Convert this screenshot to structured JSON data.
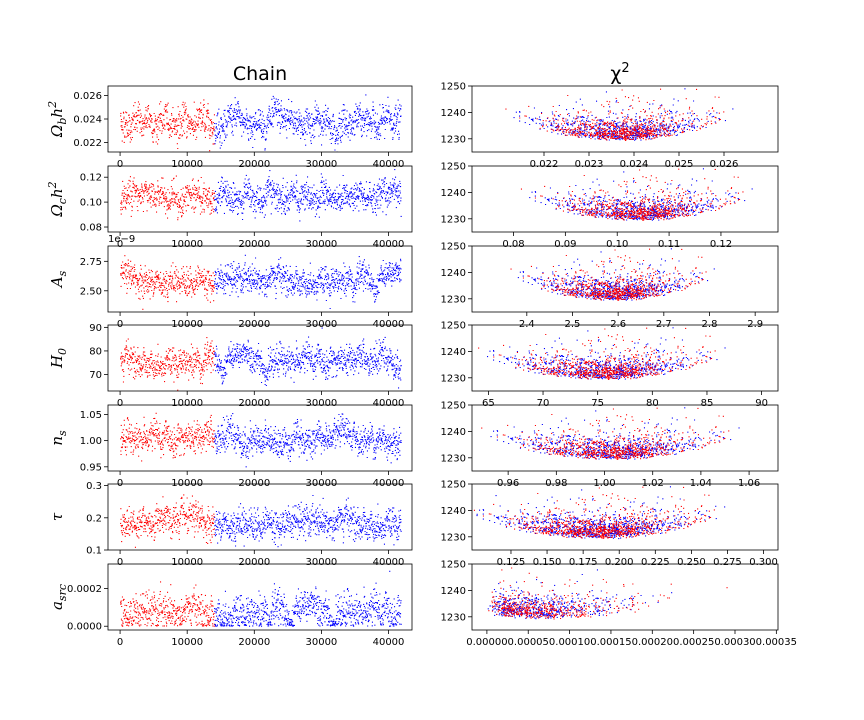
{
  "figure": {
    "left_title": "Chain",
    "right_title": "χ",
    "right_title_sup": "2"
  },
  "colors": {
    "burnin": "#ff0000",
    "chain": "#0000ff"
  },
  "chart_data": [
    {
      "type": "scatter",
      "panel": "trace",
      "param": "omega_b_h2",
      "label": {
        "base": "Ω",
        "sub": "b",
        "tail": "h",
        "sup": "2"
      },
      "x_range": [
        0,
        41800
      ],
      "burnin_end": 14000,
      "xlim": [
        -1800,
        43500
      ],
      "center": 0.0237,
      "spread": 0.00085,
      "ylim": [
        0.0212,
        0.0268
      ],
      "xticks": [
        0,
        10000,
        20000,
        30000,
        40000
      ],
      "yticks": [
        0.022,
        0.024,
        0.026
      ],
      "ytick_labels": [
        "0.022",
        "0.024",
        "0.026"
      ],
      "series": [
        {
          "name": "",
          "color": "#ff0000"
        },
        {
          "name": "",
          "color": "#0000ff"
        }
      ]
    },
    {
      "type": "scatter",
      "panel": "chi2",
      "param": "omega_b_h2",
      "x_center": 0.0237,
      "x_spread": 0.00085,
      "xlim": [
        0.0204,
        0.0272
      ],
      "ylim": [
        1225,
        1250
      ],
      "chi_min": 1229,
      "xticks": [
        0.022,
        0.023,
        0.024,
        0.025,
        0.026
      ],
      "xtick_labels": [
        "0.022",
        "0.023",
        "0.024",
        "0.025",
        "0.026"
      ],
      "yticks": [
        1230,
        1240,
        1250
      ],
      "ytick_labels": [
        "1230",
        "1240",
        "1250"
      ]
    },
    {
      "type": "scatter",
      "panel": "trace",
      "param": "omega_c_h2",
      "label": {
        "base": "Ω",
        "sub": "c",
        "tail": "h",
        "sup": "2"
      },
      "x_range": [
        0,
        41800
      ],
      "burnin_end": 14000,
      "xlim": [
        -1800,
        43500
      ],
      "center": 0.104,
      "spread": 0.0075,
      "ylim": [
        0.076,
        0.129
      ],
      "xticks": [
        0,
        10000,
        20000,
        30000,
        40000
      ],
      "yticks": [
        0.08,
        0.1,
        0.12
      ],
      "ytick_labels": [
        "0.08",
        "0.10",
        "0.12"
      ]
    },
    {
      "type": "scatter",
      "panel": "chi2",
      "param": "omega_c_h2",
      "x_center": 0.104,
      "x_spread": 0.0075,
      "xlim": [
        0.072,
        0.131
      ],
      "ylim": [
        1225,
        1250
      ],
      "chi_min": 1229,
      "xticks": [
        0.08,
        0.09,
        0.1,
        0.11,
        0.12
      ],
      "xtick_labels": [
        "0.08",
        "0.09",
        "0.10",
        "0.11",
        "0.12"
      ],
      "yticks": [
        1230,
        1240,
        1250
      ],
      "ytick_labels": [
        "1230",
        "1240",
        "1250"
      ]
    },
    {
      "type": "scatter",
      "panel": "trace",
      "param": "A_s",
      "label": {
        "base": "A",
        "sub": "s",
        "tail": "",
        "sup": ""
      },
      "offset_text": "1e−9",
      "x_range": [
        0,
        41800
      ],
      "burnin_end": 14000,
      "xlim": [
        -1800,
        43500
      ],
      "center": 2.59,
      "spread": 0.075,
      "ylim": [
        2.32,
        2.88
      ],
      "xticks": [
        0,
        10000,
        20000,
        30000,
        40000
      ],
      "yticks": [
        2.5,
        2.75
      ],
      "ytick_labels": [
        "2.50",
        "2.75"
      ]
    },
    {
      "type": "scatter",
      "panel": "chi2",
      "param": "A_s",
      "x_center": 2.59,
      "x_spread": 0.075,
      "xlim": [
        2.28,
        2.95
      ],
      "ylim": [
        1225,
        1250
      ],
      "chi_min": 1229,
      "xticks": [
        2.4,
        2.5,
        2.6,
        2.7,
        2.8,
        2.9
      ],
      "xtick_labels": [
        "2.4",
        "2.5",
        "2.6",
        "2.7",
        "2.8",
        "2.9"
      ],
      "yticks": [
        1230,
        1240,
        1250
      ],
      "ytick_labels": [
        "1230",
        "1240",
        "1250"
      ]
    },
    {
      "type": "scatter",
      "panel": "trace",
      "param": "H_0",
      "label": {
        "base": "H",
        "sub": "0",
        "tail": "",
        "sup": ""
      },
      "x_range": [
        0,
        41800
      ],
      "burnin_end": 14000,
      "xlim": [
        -1800,
        43500
      ],
      "center": 75.5,
      "spread": 3.8,
      "ylim": [
        63,
        91
      ],
      "xticks": [
        0,
        10000,
        20000,
        30000,
        40000
      ],
      "yticks": [
        70,
        80,
        90
      ],
      "ytick_labels": [
        "70",
        "80",
        "90"
      ]
    },
    {
      "type": "scatter",
      "panel": "chi2",
      "param": "H_0",
      "x_center": 75.5,
      "x_spread": 3.8,
      "xlim": [
        63.5,
        91.5
      ],
      "ylim": [
        1225,
        1250
      ],
      "chi_min": 1229,
      "xticks": [
        65,
        70,
        75,
        80,
        85,
        90
      ],
      "xtick_labels": [
        "65",
        "70",
        "75",
        "80",
        "85",
        "90"
      ],
      "yticks": [
        1230,
        1240,
        1250
      ],
      "ytick_labels": [
        "1230",
        "1240",
        "1250"
      ]
    },
    {
      "type": "scatter",
      "panel": "trace",
      "param": "n_s",
      "label": {
        "base": "n",
        "sub": "s",
        "tail": "",
        "sup": ""
      },
      "x_range": [
        0,
        41800
      ],
      "burnin_end": 14000,
      "xlim": [
        -1800,
        43500
      ],
      "center": 1.003,
      "spread": 0.018,
      "ylim": [
        0.942,
        1.068
      ],
      "xticks": [
        0,
        10000,
        20000,
        30000,
        40000
      ],
      "yticks": [
        0.95,
        1.0,
        1.05
      ],
      "ytick_labels": [
        "0.95",
        "1.00",
        "1.05"
      ]
    },
    {
      "type": "scatter",
      "panel": "chi2",
      "param": "n_s",
      "x_center": 1.003,
      "x_spread": 0.018,
      "xlim": [
        0.945,
        1.072
      ],
      "ylim": [
        1225,
        1250
      ],
      "chi_min": 1229,
      "xticks": [
        0.96,
        0.98,
        1.0,
        1.02,
        1.04,
        1.06
      ],
      "xtick_labels": [
        "0.96",
        "0.98",
        "1.00",
        "1.02",
        "1.04",
        "1.06"
      ],
      "yticks": [
        1230,
        1240,
        1250
      ],
      "ytick_labels": [
        "1230",
        "1240",
        "1250"
      ]
    },
    {
      "type": "scatter",
      "panel": "trace",
      "param": "tau",
      "label": {
        "base": "τ",
        "sub": "",
        "tail": "",
        "sup": ""
      },
      "x_range": [
        0,
        41800
      ],
      "burnin_end": 14000,
      "xlim": [
        -1800,
        43500
      ],
      "center": 0.185,
      "spread": 0.03,
      "ylim": [
        0.1,
        0.305
      ],
      "xticks": [
        0,
        10000,
        20000,
        30000,
        40000
      ],
      "yticks": [
        0.1,
        0.2,
        0.3
      ],
      "ytick_labels": [
        "0.1",
        "0.2",
        "0.3"
      ]
    },
    {
      "type": "scatter",
      "panel": "chi2",
      "param": "tau",
      "x_center": 0.185,
      "x_spread": 0.03,
      "xlim": [
        0.098,
        0.31
      ],
      "ylim": [
        1225,
        1250
      ],
      "chi_min": 1229,
      "xticks": [
        0.125,
        0.15,
        0.175,
        0.2,
        0.225,
        0.25,
        0.275,
        0.3
      ],
      "xtick_labels": [
        "0.125",
        "0.150",
        "0.175",
        "0.200",
        "0.225",
        "0.250",
        "0.275",
        "0.300"
      ],
      "yticks": [
        1230,
        1240,
        1250
      ],
      "ytick_labels": [
        "1230",
        "1240",
        "1250"
      ]
    },
    {
      "type": "scatter",
      "panel": "trace",
      "param": "a_src",
      "label": {
        "base": "a",
        "sub": "src",
        "tail": "",
        "sup": ""
      },
      "x_range": [
        0,
        41800
      ],
      "burnin_end": 14000,
      "xlim": [
        -1800,
        43500
      ],
      "center": 7e-05,
      "spread": 5e-05,
      "ylim": [
        -2e-05,
        0.00033
      ],
      "xticks": [
        0,
        10000,
        20000,
        30000,
        40000
      ],
      "yticks": [
        0.0,
        0.0002
      ],
      "ytick_labels": [
        "0.0000",
        "0.0002"
      ]
    },
    {
      "type": "scatter",
      "panel": "chi2",
      "param": "a_src",
      "x_center": 8e-05,
      "x_spread": 6e-05,
      "xlim": [
        -1.8e-05,
        0.000352
      ],
      "ylim": [
        1225,
        1250
      ],
      "chi_min": 1229,
      "xticks": [
        0.0,
        5e-05,
        0.0001,
        0.00015,
        0.0002,
        0.00025,
        0.0003,
        0.00035
      ],
      "xtick_labels": [
        "0.00000",
        "0.00005",
        "0.00010",
        "0.00015",
        "0.00020",
        "0.00025",
        "0.00030",
        "0.00035"
      ],
      "yticks": [
        1230,
        1240,
        1250
      ],
      "ytick_labels": [
        "1230",
        "1240",
        "1250"
      ]
    }
  ]
}
